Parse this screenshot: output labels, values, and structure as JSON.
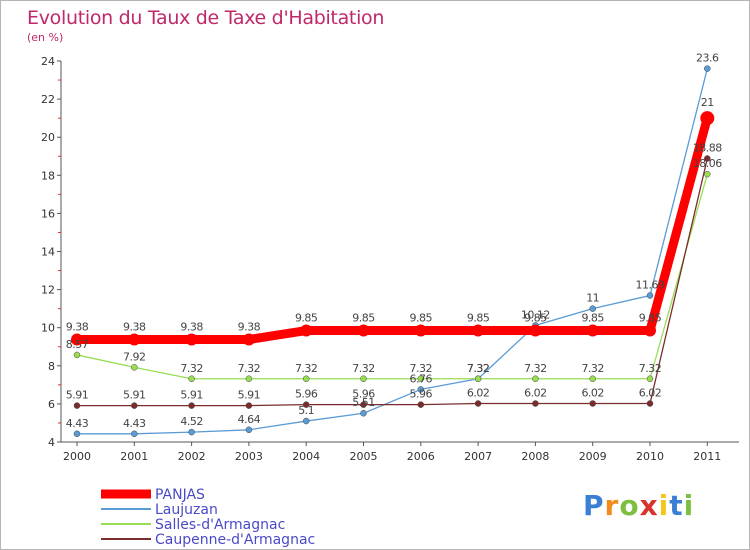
{
  "chart_data": {
    "type": "line",
    "title": "Evolution du Taux de Taxe d'Habitation",
    "subtitle": "(en %)",
    "x": [
      "2000",
      "2001",
      "2002",
      "2003",
      "2004",
      "2005",
      "2006",
      "2007",
      "2008",
      "2009",
      "2010",
      "2011"
    ],
    "ylim": [
      4,
      24
    ],
    "yticks": [
      "4",
      "6",
      "8",
      "10",
      "12",
      "14",
      "16",
      "18",
      "20",
      "22",
      "24"
    ],
    "grid": false,
    "legend_position": "bottom-left",
    "series": [
      {
        "name": "PANJAS",
        "color": "#ff0000",
        "values": [
          9.38,
          9.38,
          9.38,
          9.38,
          9.85,
          9.85,
          9.85,
          9.85,
          9.85,
          9.85,
          9.85,
          21
        ],
        "labels": [
          "9.38",
          "9.38",
          "9.38",
          "9.38",
          "9.85",
          "9.85",
          "9.85",
          "9.85",
          "9.85",
          "9.85",
          "9.85",
          "21"
        ]
      },
      {
        "name": "Laujuzan",
        "color": "#5b9bd5",
        "values": [
          4.43,
          4.43,
          4.52,
          4.64,
          5.1,
          5.51,
          6.76,
          7.32,
          10.12,
          11,
          11.69,
          23.6
        ],
        "labels": [
          "4.43",
          "4.43",
          "4.52",
          "4.64",
          "5.1",
          "5.51",
          "6.76",
          "7.32",
          "10.12",
          "11",
          "11.69",
          "23.6"
        ]
      },
      {
        "name": "Salles-d'Armagnac",
        "color": "#99dd55",
        "values": [
          8.57,
          7.92,
          7.32,
          7.32,
          7.32,
          7.32,
          7.32,
          7.32,
          7.32,
          7.32,
          7.32,
          18.06
        ],
        "labels": [
          "8.57",
          "7.92",
          "7.32",
          "7.32",
          "7.32",
          "7.32",
          "7.32",
          "7.32",
          "7.32",
          "7.32",
          "7.32",
          "18.06"
        ]
      },
      {
        "name": "Caupenne-d'Armagnac",
        "color": "#7b2d2d",
        "values": [
          5.91,
          5.91,
          5.91,
          5.91,
          5.96,
          5.96,
          5.96,
          6.02,
          6.02,
          6.02,
          6.02,
          18.88
        ],
        "labels": [
          "5.91",
          "5.91",
          "5.91",
          "5.91",
          "5.96",
          "5.96",
          "5.96",
          "6.02",
          "6.02",
          "6.02",
          "6.02",
          "18.88"
        ]
      }
    ]
  },
  "logo": {
    "letters": [
      "P",
      "r",
      "o",
      "x",
      "i",
      "t",
      "i"
    ],
    "colors": [
      "#3a7fd4",
      "#f28c1e",
      "#7fbf3f",
      "#d9342b",
      "#f2c81e",
      "#3a7fd4",
      "#7fbf3f"
    ]
  }
}
